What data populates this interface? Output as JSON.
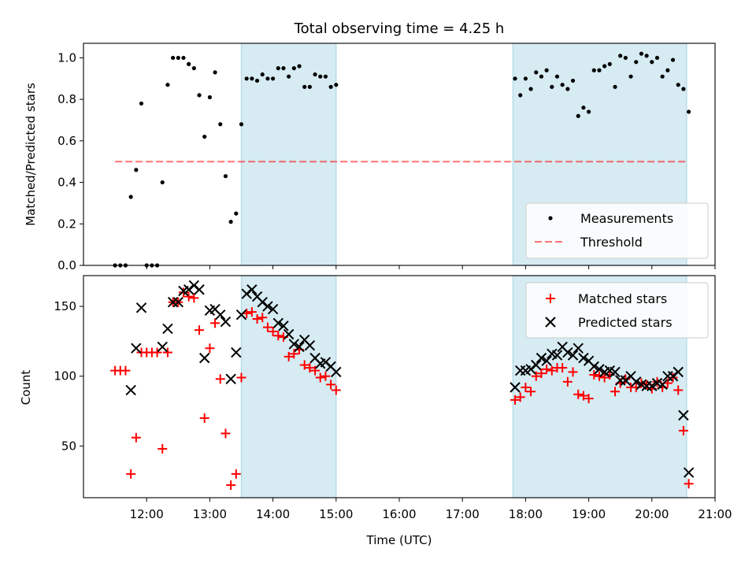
{
  "figure": {
    "title": "Total observing time = 4.25 h"
  },
  "colors": {
    "observing_band": "#add8e6",
    "measurements": "#000000",
    "threshold": "#ff0000",
    "matched": "#ff0000",
    "predicted": "#000000"
  },
  "chart_data": [
    {
      "type": "scatter",
      "title": "Total observing time = 4.25 h",
      "xlabel": "",
      "ylabel": "Matched/Predicted stars",
      "xlim": [
        "11:00",
        "21:00"
      ],
      "ylim": [
        0,
        1.07
      ],
      "yticks": [
        "0.0",
        "0.2",
        "0.4",
        "0.6",
        "0.8",
        "1.0"
      ],
      "legend": {
        "position": "lower right",
        "entries": [
          "Measurements",
          "Threshold"
        ]
      },
      "shaded_intervals": [
        [
          "13:30",
          "15:00"
        ],
        [
          "17:48",
          "20:33"
        ]
      ],
      "threshold": {
        "name": "Threshold",
        "y": 0.5,
        "x": [
          "11:30",
          "20:33"
        ]
      },
      "series": [
        {
          "name": "Measurements",
          "points": [
            [
              "11:30",
              0.0
            ],
            [
              "11:35",
              0.0
            ],
            [
              "11:40",
              0.0
            ],
            [
              "11:45",
              0.33
            ],
            [
              "11:50",
              0.46
            ],
            [
              "11:55",
              0.78
            ],
            [
              "12:00",
              0.0
            ],
            [
              "12:05",
              0.0
            ],
            [
              "12:10",
              0.0
            ],
            [
              "12:15",
              0.4
            ],
            [
              "12:20",
              0.87
            ],
            [
              "12:25",
              1.0
            ],
            [
              "12:30",
              1.0
            ],
            [
              "12:35",
              1.0
            ],
            [
              "12:40",
              0.97
            ],
            [
              "12:45",
              0.95
            ],
            [
              "12:50",
              0.82
            ],
            [
              "12:55",
              0.62
            ],
            [
              "13:00",
              0.81
            ],
            [
              "13:05",
              0.93
            ],
            [
              "13:10",
              0.68
            ],
            [
              "13:15",
              0.43
            ],
            [
              "13:20",
              0.21
            ],
            [
              "13:25",
              0.25
            ],
            [
              "13:30",
              0.68
            ],
            [
              "13:35",
              0.9
            ],
            [
              "13:40",
              0.9
            ],
            [
              "13:45",
              0.89
            ],
            [
              "13:50",
              0.92
            ],
            [
              "13:55",
              0.9
            ],
            [
              "14:00",
              0.9
            ],
            [
              "14:05",
              0.95
            ],
            [
              "14:10",
              0.95
            ],
            [
              "14:15",
              0.91
            ],
            [
              "14:20",
              0.95
            ],
            [
              "14:25",
              0.96
            ],
            [
              "14:30",
              0.86
            ],
            [
              "14:35",
              0.86
            ],
            [
              "14:40",
              0.92
            ],
            [
              "14:45",
              0.91
            ],
            [
              "14:50",
              0.91
            ],
            [
              "14:55",
              0.86
            ],
            [
              "15:00",
              0.87
            ],
            [
              "17:50",
              0.9
            ],
            [
              "17:55",
              0.82
            ],
            [
              "18:00",
              0.9
            ],
            [
              "18:05",
              0.85
            ],
            [
              "18:10",
              0.93
            ],
            [
              "18:15",
              0.91
            ],
            [
              "18:20",
              0.94
            ],
            [
              "18:25",
              0.86
            ],
            [
              "18:30",
              0.91
            ],
            [
              "18:35",
              0.87
            ],
            [
              "18:40",
              0.85
            ],
            [
              "18:45",
              0.89
            ],
            [
              "18:50",
              0.72
            ],
            [
              "18:55",
              0.76
            ],
            [
              "19:00",
              0.74
            ],
            [
              "19:05",
              0.94
            ],
            [
              "19:10",
              0.94
            ],
            [
              "19:15",
              0.96
            ],
            [
              "19:20",
              0.97
            ],
            [
              "19:25",
              0.86
            ],
            [
              "19:30",
              1.01
            ],
            [
              "19:35",
              1.0
            ],
            [
              "19:40",
              0.91
            ],
            [
              "19:45",
              0.98
            ],
            [
              "19:50",
              1.02
            ],
            [
              "19:55",
              1.01
            ],
            [
              "20:00",
              0.98
            ],
            [
              "20:05",
              1.0
            ],
            [
              "20:10",
              0.91
            ],
            [
              "20:15",
              0.94
            ],
            [
              "20:20",
              0.99
            ],
            [
              "20:25",
              0.87
            ],
            [
              "20:30",
              0.85
            ],
            [
              "20:35",
              0.74
            ]
          ]
        }
      ]
    },
    {
      "type": "scatter",
      "xlabel": "Time (UTC)",
      "ylabel": "Count",
      "xlim": [
        "11:00",
        "21:00"
      ],
      "xticks": [
        "12:00",
        "13:00",
        "14:00",
        "15:00",
        "16:00",
        "17:00",
        "18:00",
        "19:00",
        "20:00",
        "21:00"
      ],
      "ylim": [
        13,
        172
      ],
      "yticks": [
        "50",
        "100",
        "150"
      ],
      "legend": {
        "position": "upper right",
        "entries": [
          "Matched stars",
          "Predicted stars"
        ]
      },
      "shaded_intervals": [
        [
          "13:30",
          "15:00"
        ],
        [
          "17:48",
          "20:33"
        ]
      ],
      "series": [
        {
          "name": "Matched stars",
          "marker": "+",
          "points": [
            [
              "11:30",
              104
            ],
            [
              "11:35",
              104
            ],
            [
              "11:40",
              104
            ],
            [
              "11:45",
              30
            ],
            [
              "11:50",
              56
            ],
            [
              "11:55",
              117
            ],
            [
              "12:00",
              117
            ],
            [
              "12:05",
              117
            ],
            [
              "12:10",
              117
            ],
            [
              "12:15",
              48
            ],
            [
              "12:20",
              117
            ],
            [
              "12:25",
              153
            ],
            [
              "12:30",
              153
            ],
            [
              "12:35",
              160
            ],
            [
              "12:40",
              157
            ],
            [
              "12:45",
              156
            ],
            [
              "12:50",
              133
            ],
            [
              "12:55",
              70
            ],
            [
              "13:00",
              120
            ],
            [
              "13:05",
              138
            ],
            [
              "13:10",
              98
            ],
            [
              "13:15",
              59
            ],
            [
              "13:20",
              22
            ],
            [
              "13:25",
              30
            ],
            [
              "13:30",
              99
            ],
            [
              "13:35",
              145
            ],
            [
              "13:40",
              146
            ],
            [
              "13:45",
              141
            ],
            [
              "13:50",
              142
            ],
            [
              "13:55",
              135
            ],
            [
              "14:00",
              132
            ],
            [
              "14:05",
              129
            ],
            [
              "14:10",
              128
            ],
            [
              "14:15",
              114
            ],
            [
              "14:20",
              116
            ],
            [
              "14:25",
              119
            ],
            [
              "14:30",
              108
            ],
            [
              "14:35",
              106
            ],
            [
              "14:40",
              104
            ],
            [
              "14:45",
              99
            ],
            [
              "14:50",
              100
            ],
            [
              "14:55",
              94
            ],
            [
              "15:00",
              90
            ],
            [
              "17:50",
              83
            ],
            [
              "17:55",
              85
            ],
            [
              "18:00",
              92
            ],
            [
              "18:05",
              89
            ],
            [
              "18:10",
              100
            ],
            [
              "18:15",
              102
            ],
            [
              "18:20",
              105
            ],
            [
              "18:25",
              104
            ],
            [
              "18:30",
              106
            ],
            [
              "18:35",
              106
            ],
            [
              "18:40",
              96
            ],
            [
              "18:45",
              103
            ],
            [
              "18:50",
              87
            ],
            [
              "18:55",
              86
            ],
            [
              "19:00",
              84
            ],
            [
              "19:05",
              101
            ],
            [
              "19:10",
              100
            ],
            [
              "19:15",
              99
            ],
            [
              "19:20",
              101
            ],
            [
              "19:25",
              89
            ],
            [
              "19:30",
              95
            ],
            [
              "19:35",
              98
            ],
            [
              "19:40",
              92
            ],
            [
              "19:45",
              92
            ],
            [
              "19:50",
              95
            ],
            [
              "19:55",
              94
            ],
            [
              "20:00",
              91
            ],
            [
              "20:05",
              96
            ],
            [
              "20:10",
              92
            ],
            [
              "20:15",
              95
            ],
            [
              "20:20",
              99
            ],
            [
              "20:25",
              90
            ],
            [
              "20:30",
              61
            ],
            [
              "20:35",
              23
            ]
          ]
        },
        {
          "name": "Predicted stars",
          "marker": "x",
          "points": [
            [
              "11:45",
              90
            ],
            [
              "11:50",
              120
            ],
            [
              "11:55",
              149
            ],
            [
              "12:15",
              121
            ],
            [
              "12:20",
              134
            ],
            [
              "12:25",
              153
            ],
            [
              "12:30",
              153
            ],
            [
              "12:35",
              161
            ],
            [
              "12:40",
              162
            ],
            [
              "12:45",
              165
            ],
            [
              "12:50",
              162
            ],
            [
              "12:55",
              113
            ],
            [
              "13:00",
              147
            ],
            [
              "13:05",
              148
            ],
            [
              "13:10",
              144
            ],
            [
              "13:15",
              139
            ],
            [
              "13:20",
              98
            ],
            [
              "13:25",
              117
            ],
            [
              "13:30",
              144
            ],
            [
              "13:35",
              159
            ],
            [
              "13:40",
              162
            ],
            [
              "13:45",
              157
            ],
            [
              "13:50",
              153
            ],
            [
              "13:55",
              150
            ],
            [
              "14:00",
              148
            ],
            [
              "14:05",
              138
            ],
            [
              "14:10",
              136
            ],
            [
              "14:15",
              130
            ],
            [
              "14:20",
              123
            ],
            [
              "14:25",
              121
            ],
            [
              "14:30",
              126
            ],
            [
              "14:35",
              122
            ],
            [
              "14:40",
              113
            ],
            [
              "14:45",
              109
            ],
            [
              "14:50",
              110
            ],
            [
              "14:55",
              107
            ],
            [
              "15:00",
              103
            ],
            [
              "17:50",
              92
            ],
            [
              "17:55",
              104
            ],
            [
              "18:00",
              104
            ],
            [
              "18:05",
              105
            ],
            [
              "18:10",
              108
            ],
            [
              "18:15",
              113
            ],
            [
              "18:20",
              111
            ],
            [
              "18:25",
              116
            ],
            [
              "18:30",
              115
            ],
            [
              "18:35",
              121
            ],
            [
              "18:40",
              117
            ],
            [
              "18:45",
              115
            ],
            [
              "18:50",
              120
            ],
            [
              "18:55",
              113
            ],
            [
              "19:00",
              111
            ],
            [
              "19:05",
              107
            ],
            [
              "19:10",
              105
            ],
            [
              "19:15",
              103
            ],
            [
              "19:20",
              104
            ],
            [
              "19:25",
              103
            ],
            [
              "19:30",
              97
            ],
            [
              "19:35",
              97
            ],
            [
              "19:40",
              100
            ],
            [
              "19:45",
              96
            ],
            [
              "19:50",
              94
            ],
            [
              "19:55",
              93
            ],
            [
              "20:00",
              93
            ],
            [
              "20:05",
              95
            ],
            [
              "20:10",
              94
            ],
            [
              "20:15",
              100
            ],
            [
              "20:20",
              100
            ],
            [
              "20:25",
              103
            ],
            [
              "20:30",
              72
            ],
            [
              "20:35",
              31
            ]
          ]
        }
      ]
    }
  ]
}
